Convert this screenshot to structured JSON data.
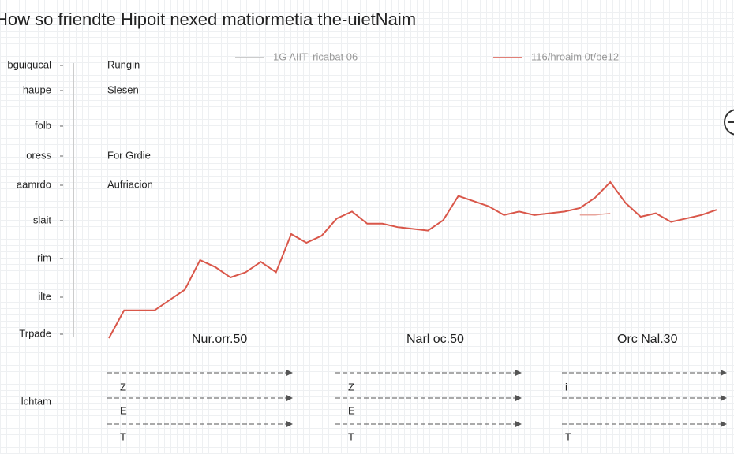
{
  "chart_data": {
    "type": "line",
    "title": "How so friendte Hipoit nexed matiormetia the-uietNaim",
    "side_labels": [
      "bguiqucal",
      "haupe",
      "folb",
      "oress",
      "aamrdo",
      "slait",
      "rim",
      "ilte",
      "Trpade",
      "lchtam"
    ],
    "panel_labels": [
      "Rungin",
      "Slesen",
      "For Grdie",
      "Aufriacion"
    ],
    "x": [
      0,
      1,
      2,
      3,
      4,
      5,
      6,
      7,
      8,
      9,
      10,
      11,
      12,
      13,
      14,
      15,
      16,
      17,
      18,
      19,
      20,
      21,
      22,
      23,
      24,
      25,
      26,
      27,
      28,
      29,
      30,
      31,
      32,
      33,
      34,
      35,
      36,
      37,
      38,
      39,
      40
    ],
    "xlim": [
      0,
      40
    ],
    "ylim": [
      0,
      100
    ],
    "series": [
      {
        "name": "1G AIIT' ricabat 06",
        "color": "#e8a59c",
        "values": [
          null,
          null,
          null,
          null,
          null,
          null,
          null,
          null,
          null,
          null,
          null,
          null,
          null,
          null,
          null,
          null,
          null,
          null,
          null,
          null,
          null,
          null,
          null,
          null,
          null,
          null,
          null,
          null,
          null,
          null,
          null,
          76,
          76,
          77,
          null,
          null,
          null,
          null,
          null,
          null,
          null
        ]
      },
      {
        "name": "116/hroaim 0t/be12",
        "color": "#d9574a",
        "values": [
          5,
          21,
          21,
          21,
          27,
          33,
          50,
          46,
          40,
          43,
          49,
          43,
          65,
          60,
          64,
          74,
          78,
          71,
          71,
          69,
          68,
          67,
          73,
          87,
          84,
          81,
          76,
          78,
          76,
          77,
          78,
          80,
          86,
          95,
          83,
          75,
          77,
          72,
          74,
          76,
          79
        ]
      }
    ],
    "annotations": [
      "Nur.orr.50",
      "Narl oc.50",
      "Orc Nal.30"
    ],
    "rows": [
      [
        "Z",
        "E",
        "T"
      ],
      [
        "Z",
        "E",
        "T"
      ],
      [
        "i",
        "T"
      ]
    ]
  }
}
